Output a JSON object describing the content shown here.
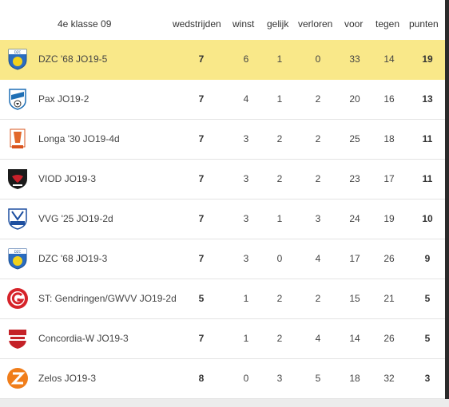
{
  "header": {
    "competition": "4e klasse 09",
    "played": "wedstrijden",
    "won": "winst",
    "draw": "gelijk",
    "lost": "verloren",
    "goals_for": "voor",
    "goals_against": "tegen",
    "points": "punten"
  },
  "highlight_color": "#f9e889",
  "rows": [
    {
      "team": "DZC '68 JO19-5",
      "logo": "dzc-logo",
      "played": "7",
      "won": "6",
      "draw": "1",
      "lost": "0",
      "goals_for": "33",
      "goals_against": "14",
      "points": "19"
    },
    {
      "team": "Pax JO19-2",
      "logo": "pax-logo",
      "played": "7",
      "won": "4",
      "draw": "1",
      "lost": "2",
      "goals_for": "20",
      "goals_against": "16",
      "points": "13"
    },
    {
      "team": "Longa '30 JO19-4d",
      "logo": "longa-logo",
      "played": "7",
      "won": "3",
      "draw": "2",
      "lost": "2",
      "goals_for": "25",
      "goals_against": "18",
      "points": "11"
    },
    {
      "team": "VIOD JO19-3",
      "logo": "viod-logo",
      "played": "7",
      "won": "3",
      "draw": "2",
      "lost": "2",
      "goals_for": "23",
      "goals_against": "17",
      "points": "11"
    },
    {
      "team": "VVG '25 JO19-2d",
      "logo": "vvg-logo",
      "played": "7",
      "won": "3",
      "draw": "1",
      "lost": "3",
      "goals_for": "24",
      "goals_against": "19",
      "points": "10"
    },
    {
      "team": "DZC '68 JO19-3",
      "logo": "dzc-logo",
      "played": "7",
      "won": "3",
      "draw": "0",
      "lost": "4",
      "goals_for": "17",
      "goals_against": "26",
      "points": "9"
    },
    {
      "team": "ST: Gendringen/GWVV JO19-2d",
      "logo": "gendringen-logo",
      "played": "5",
      "won": "1",
      "draw": "2",
      "lost": "2",
      "goals_for": "15",
      "goals_against": "21",
      "points": "5"
    },
    {
      "team": "Concordia-W JO19-3",
      "logo": "concordia-logo",
      "played": "7",
      "won": "1",
      "draw": "2",
      "lost": "4",
      "goals_for": "14",
      "goals_against": "26",
      "points": "5"
    },
    {
      "team": "Zelos JO19-3",
      "logo": "zelos-logo",
      "played": "8",
      "won": "0",
      "draw": "3",
      "lost": "5",
      "goals_for": "18",
      "goals_against": "32",
      "points": "3"
    }
  ]
}
